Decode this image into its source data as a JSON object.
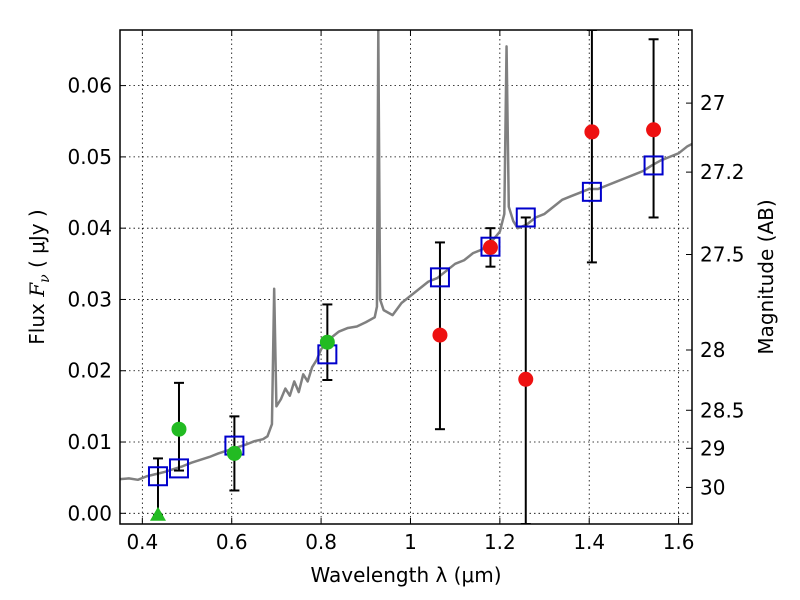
{
  "chart_data": {
    "type": "scatter",
    "xlabel": "Wavelength  λ (μm)",
    "ylabel": "Flux  F_ν  ( μJy )",
    "ylabel_parts": {
      "prefix": "Flux  ",
      "symbol": "F",
      "subscript": "ν",
      "suffix": "  ( μJy )"
    },
    "y2label": "Magnitude (AB)",
    "xlim": [
      0.35,
      1.63
    ],
    "ylim": [
      -0.0015,
      0.0678
    ],
    "grid": true,
    "xticks": [
      {
        "value": 0.4,
        "label": "0.4"
      },
      {
        "value": 0.6,
        "label": "0.6"
      },
      {
        "value": 0.8,
        "label": "0.8"
      },
      {
        "value": 1.0,
        "label": "1"
      },
      {
        "value": 1.2,
        "label": "1.2"
      },
      {
        "value": 1.4,
        "label": "1.4"
      },
      {
        "value": 1.6,
        "label": "1.6"
      }
    ],
    "yticks": [
      {
        "value": 0.0,
        "label": "0.00"
      },
      {
        "value": 0.01,
        "label": "0.01"
      },
      {
        "value": 0.02,
        "label": "0.02"
      },
      {
        "value": 0.03,
        "label": "0.03"
      },
      {
        "value": 0.04,
        "label": "0.04"
      },
      {
        "value": 0.05,
        "label": "0.05"
      },
      {
        "value": 0.06,
        "label": "0.06"
      }
    ],
    "y2ticks": [
      {
        "mag": 27,
        "label": "27"
      },
      {
        "mag": 27.2,
        "label": "27.2"
      },
      {
        "mag": 27.5,
        "label": "27.5"
      },
      {
        "mag": 28,
        "label": "28"
      },
      {
        "mag": 28.5,
        "label": "28.5"
      },
      {
        "mag": 29,
        "label": "29"
      },
      {
        "mag": 30,
        "label": "30"
      }
    ],
    "spectrum": {
      "color": "#808080",
      "points": [
        [
          0.35,
          0.0048
        ],
        [
          0.37,
          0.0049
        ],
        [
          0.39,
          0.0047
        ],
        [
          0.41,
          0.0052
        ],
        [
          0.43,
          0.0055
        ],
        [
          0.45,
          0.0058
        ],
        [
          0.47,
          0.0062
        ],
        [
          0.49,
          0.0066
        ],
        [
          0.51,
          0.0071
        ],
        [
          0.53,
          0.0075
        ],
        [
          0.55,
          0.0079
        ],
        [
          0.57,
          0.0084
        ],
        [
          0.59,
          0.0088
        ],
        [
          0.61,
          0.0092
        ],
        [
          0.63,
          0.0096
        ],
        [
          0.65,
          0.0101
        ],
        [
          0.67,
          0.0104
        ],
        [
          0.68,
          0.0108
        ],
        [
          0.69,
          0.0125
        ],
        [
          0.695,
          0.0315
        ],
        [
          0.7,
          0.015
        ],
        [
          0.71,
          0.016
        ],
        [
          0.72,
          0.0175
        ],
        [
          0.73,
          0.0165
        ],
        [
          0.74,
          0.0185
        ],
        [
          0.75,
          0.017
        ],
        [
          0.76,
          0.0195
        ],
        [
          0.77,
          0.0185
        ],
        [
          0.78,
          0.0205
        ],
        [
          0.79,
          0.0215
        ],
        [
          0.8,
          0.023
        ],
        [
          0.82,
          0.0245
        ],
        [
          0.84,
          0.0255
        ],
        [
          0.86,
          0.026
        ],
        [
          0.88,
          0.0262
        ],
        [
          0.9,
          0.0268
        ],
        [
          0.92,
          0.0275
        ],
        [
          0.925,
          0.029
        ],
        [
          0.928,
          0.0678
        ],
        [
          0.932,
          0.03
        ],
        [
          0.94,
          0.0285
        ],
        [
          0.96,
          0.0278
        ],
        [
          0.98,
          0.0295
        ],
        [
          1.0,
          0.0305
        ],
        [
          1.02,
          0.0315
        ],
        [
          1.04,
          0.0325
        ],
        [
          1.06,
          0.033
        ],
        [
          1.08,
          0.034
        ],
        [
          1.1,
          0.035
        ],
        [
          1.12,
          0.0355
        ],
        [
          1.14,
          0.0365
        ],
        [
          1.16,
          0.037
        ],
        [
          1.18,
          0.038
        ],
        [
          1.2,
          0.0395
        ],
        [
          1.21,
          0.042
        ],
        [
          1.215,
          0.0655
        ],
        [
          1.22,
          0.043
        ],
        [
          1.23,
          0.041
        ],
        [
          1.24,
          0.04
        ],
        [
          1.26,
          0.0405
        ],
        [
          1.28,
          0.0415
        ],
        [
          1.3,
          0.042
        ],
        [
          1.32,
          0.043
        ],
        [
          1.34,
          0.044
        ],
        [
          1.36,
          0.0445
        ],
        [
          1.38,
          0.045
        ],
        [
          1.4,
          0.0455
        ],
        [
          1.42,
          0.0455
        ],
        [
          1.44,
          0.046
        ],
        [
          1.46,
          0.0465
        ],
        [
          1.48,
          0.047
        ],
        [
          1.5,
          0.0475
        ],
        [
          1.52,
          0.048
        ],
        [
          1.54,
          0.0488
        ],
        [
          1.56,
          0.0495
        ],
        [
          1.58,
          0.05
        ],
        [
          1.6,
          0.0505
        ],
        [
          1.62,
          0.0515
        ],
        [
          1.63,
          0.0518
        ]
      ]
    },
    "series": [
      {
        "marker": "square-open",
        "color": "#0000cc",
        "points": [
          {
            "x": 0.435,
            "y": 0.0052
          },
          {
            "x": 0.482,
            "y": 0.0063
          },
          {
            "x": 0.606,
            "y": 0.0095
          },
          {
            "x": 0.814,
            "y": 0.0223
          },
          {
            "x": 1.066,
            "y": 0.0331
          },
          {
            "x": 1.179,
            "y": 0.0374
          },
          {
            "x": 1.258,
            "y": 0.0415
          },
          {
            "x": 1.406,
            "y": 0.0451
          },
          {
            "x": 1.544,
            "y": 0.0488
          }
        ]
      },
      {
        "marker": "circle-filled",
        "color": "#22bb22",
        "points": [
          {
            "x": 0.482,
            "y": 0.0118,
            "yerr_low": 0.006,
            "yerr_high": 0.0183
          },
          {
            "x": 0.606,
            "y": 0.0084,
            "yerr_low": 0.0032,
            "yerr_high": 0.0136
          },
          {
            "x": 0.814,
            "y": 0.024,
            "yerr_low": 0.0187,
            "yerr_high": 0.0293
          }
        ]
      },
      {
        "marker": "triangle-up-filled",
        "color": "#22bb22",
        "points": [
          {
            "x": 0.435,
            "y": -0.0002,
            "yerr_low": -0.0002,
            "yerr_high": 0.0077
          }
        ]
      },
      {
        "marker": "circle-filled",
        "color": "#ee1111",
        "points": [
          {
            "x": 1.066,
            "y": 0.025,
            "yerr_low": 0.0118,
            "yerr_high": 0.038
          },
          {
            "x": 1.179,
            "y": 0.0373,
            "yerr_low": 0.0346,
            "yerr_high": 0.04
          },
          {
            "x": 1.258,
            "y": 0.0188,
            "yerr_low": -0.0015,
            "yerr_high": 0.0415
          },
          {
            "x": 1.406,
            "y": 0.0535,
            "yerr_low": 0.0352,
            "yerr_high": 0.0678
          },
          {
            "x": 1.544,
            "y": 0.0538,
            "yerr_low": 0.0415,
            "yerr_high": 0.0665
          }
        ]
      }
    ]
  }
}
